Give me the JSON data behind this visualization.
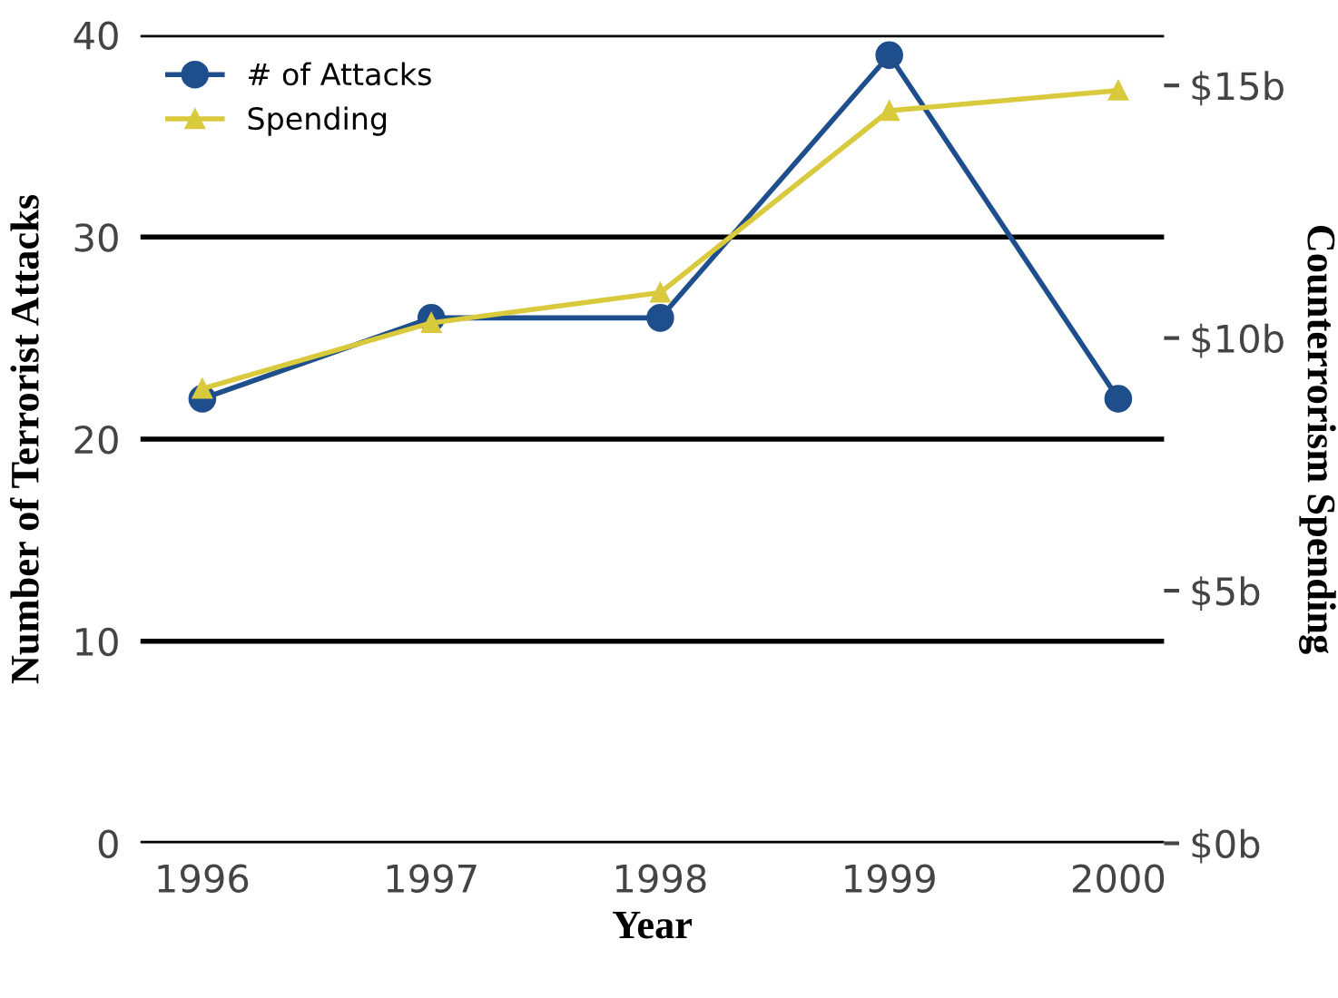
{
  "chart_data": {
    "type": "line",
    "xlabel": "Year",
    "ylabel": "Number of Terrorist Attacks",
    "y2label": "Counterrorism Spending",
    "categories": [
      "1996",
      "1997",
      "1998",
      "1999",
      "2000"
    ],
    "series": [
      {
        "name": "# of Attacks",
        "color": "#1f4e8c",
        "marker": "circle",
        "values": [
          22,
          26,
          26,
          39,
          22
        ]
      },
      {
        "name": "Spending",
        "color": "#d9c93c",
        "marker": "triangle",
        "axis": "y2",
        "values": [
          9.0,
          10.3,
          10.9,
          14.5,
          14.9
        ]
      }
    ],
    "ylim": [
      0,
      40
    ],
    "yticks": [
      0,
      10,
      20,
      30,
      40
    ],
    "y2lim": [
      0,
      16
    ],
    "y2ticks": [
      {
        "value": 0,
        "label": "$0b"
      },
      {
        "value": 5,
        "label": "$5b"
      },
      {
        "value": 10,
        "label": "$10b"
      },
      {
        "value": 15,
        "label": "$15b"
      }
    ],
    "grid": "y",
    "legend": "top left",
    "line_style": "solid"
  }
}
